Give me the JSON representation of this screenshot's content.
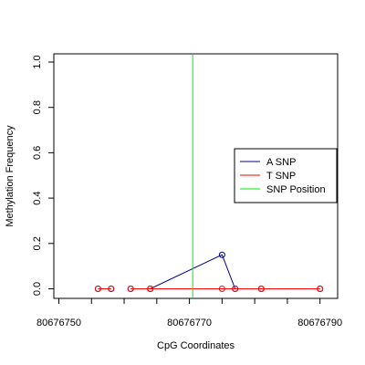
{
  "chart_data": {
    "type": "line",
    "title": "",
    "xlabel": "CpG Coordinates",
    "ylabel": "Methylation Frequency",
    "xlim": [
      80676750,
      80676792
    ],
    "ylim": [
      0,
      1.0
    ],
    "x_ticks": [
      80676750,
      80676770,
      80676790
    ],
    "x_tick_labels": [
      "80676750",
      "80676770",
      "80676790"
    ],
    "y_ticks": [
      0,
      0.2,
      0.4,
      0.6,
      0.8,
      1.0
    ],
    "y_tick_labels": [
      "0.0",
      "0.2",
      "0.4",
      "0.6",
      "0.8",
      "1.0"
    ],
    "grid": false,
    "legend_position": "right",
    "series": [
      {
        "name": "A SNP",
        "color": "#00008B",
        "x": [
          80676756,
          80676758,
          80676761,
          80676764,
          80676775,
          80676777,
          80676781,
          80676790
        ],
        "y": [
          0,
          0,
          0,
          0,
          0.15,
          0,
          0,
          0
        ],
        "segments": [
          [
            0,
            1
          ],
          [
            2,
            3,
            4,
            5,
            6,
            7
          ]
        ]
      },
      {
        "name": "T SNP",
        "color": "#FF0000",
        "x": [
          80676756,
          80676758,
          80676761,
          80676764,
          80676775,
          80676777,
          80676781,
          80676790
        ],
        "y": [
          0,
          0,
          0,
          0,
          0,
          0,
          0,
          0
        ],
        "segments": [
          [
            0,
            1
          ],
          [
            2,
            3,
            4,
            5,
            6,
            7
          ]
        ]
      },
      {
        "name": "SNP Position",
        "color": "#00EE00",
        "vline_x": 80676770.5
      }
    ]
  }
}
